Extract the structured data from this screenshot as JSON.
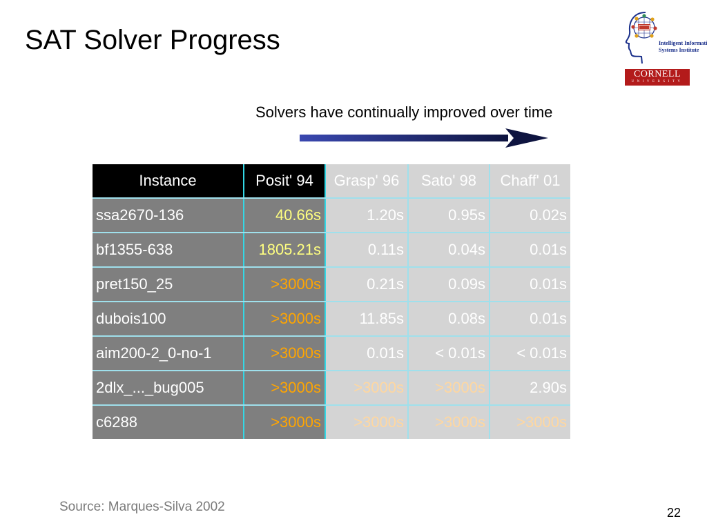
{
  "slide": {
    "title": "SAT Solver Progress",
    "subtitle": "Solvers have continually improved over time",
    "source": "Source: Marques-Silva 2002",
    "page_number": "22"
  },
  "logo": {
    "line1": "Intelligent Information",
    "line2": "Systems Institute",
    "cornell": "CORNELL",
    "university": "UNIVERSITY"
  },
  "colors": {
    "header_dark": "#000000",
    "cell_dark": "#7f7f7f",
    "cell_light": "#d4d4d4",
    "highlight_yellow": "#ffff80",
    "highlight_orange": "#ffa500",
    "arrow": "#1f2a6e",
    "cornell_red": "#b31b1b"
  },
  "table": {
    "headers": [
      "Instance",
      "Posit' 94",
      "Grasp' 96",
      "Sato' 98",
      "Chaff' 01"
    ],
    "rows": [
      [
        "ssa2670-136",
        "40.66s",
        "1.20s",
        "0.95s",
        "0.02s"
      ],
      [
        "bf1355-638",
        "1805.21s",
        "0.11s",
        "0.04s",
        "0.01s"
      ],
      [
        "pret150_25",
        ">3000s",
        "0.21s",
        "0.09s",
        "0.01s"
      ],
      [
        "dubois100",
        ">3000s",
        "11.85s",
        "0.08s",
        "0.01s"
      ],
      [
        "aim200-2_0-no-1",
        ">3000s",
        "0.01s",
        "< 0.01s",
        "< 0.01s"
      ],
      [
        "2dlx_..._bug005",
        ">3000s",
        ">3000s",
        ">3000s",
        "2.90s"
      ],
      [
        "c6288",
        ">3000s",
        ">3000s",
        ">3000s",
        ">3000s"
      ]
    ]
  }
}
